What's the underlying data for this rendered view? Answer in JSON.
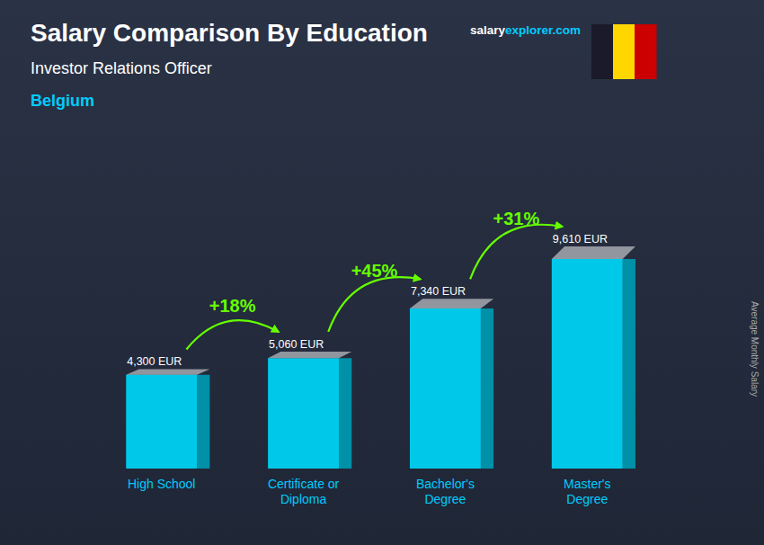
{
  "chart_data": {
    "type": "bar",
    "title": "Salary Comparison By Education",
    "subtitle": "Investor Relations Officer",
    "country": "Belgium",
    "website": [
      "salary",
      "explorer.com"
    ],
    "ylabel": "Average Monthly Salary",
    "categories": [
      "High School",
      "Certificate or\nDiploma",
      "Bachelor's\nDegree",
      "Master's\nDegree"
    ],
    "values": [
      4300,
      5060,
      7340,
      9610
    ],
    "value_labels": [
      "4,300 EUR",
      "5,060 EUR",
      "7,340 EUR",
      "9,610 EUR"
    ],
    "data_labels": true,
    "color": "#00c8e8",
    "annotations": [
      {
        "text": "+18%",
        "color": "#66ff00"
      },
      {
        "text": "+45%",
        "color": "#66ff00"
      },
      {
        "text": "+31%",
        "color": "#66ff00"
      }
    ],
    "flag_colors": [
      "#1a1a2a",
      "#FFD700",
      "#CC0000"
    ],
    "ylim": [
      0,
      12000
    ],
    "tick_labels": "x",
    "grid": false
  }
}
